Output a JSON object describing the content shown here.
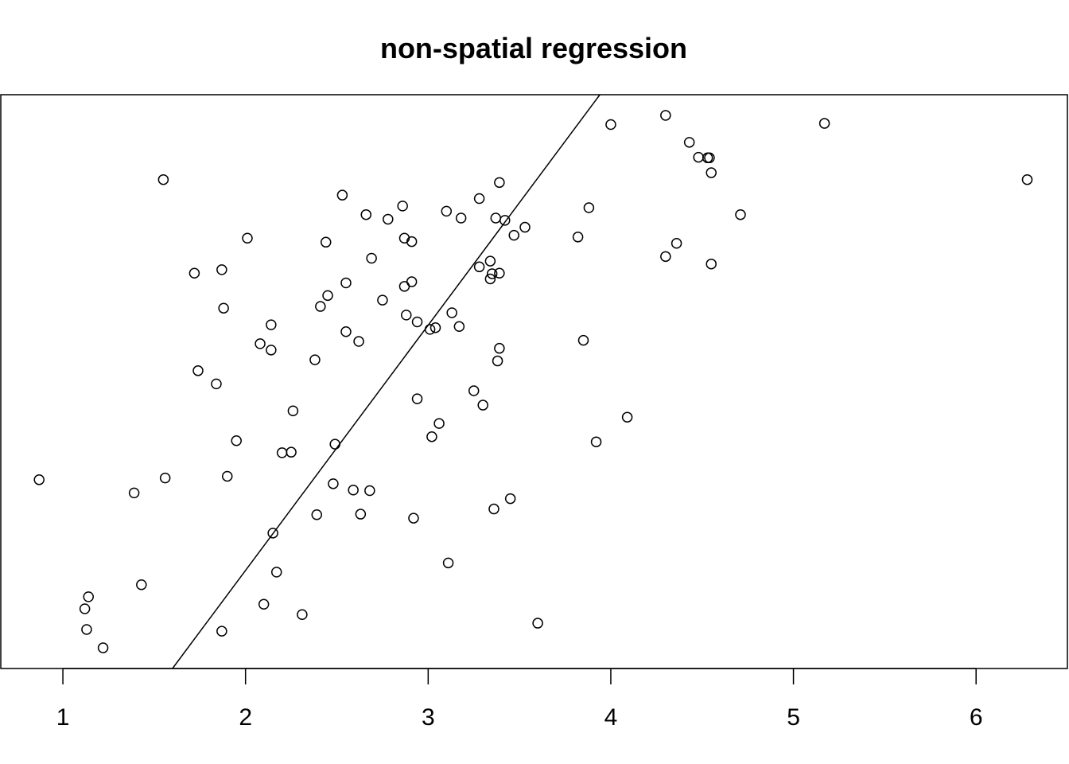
{
  "chart_data": {
    "type": "scatter",
    "title": "non-spatial regression",
    "xlabel": "",
    "ylabel": "",
    "xlim": [
      0.66,
      6.5
    ],
    "ylim": [
      0,
      100
    ],
    "x_ticks": [
      1,
      2,
      3,
      4,
      5,
      6
    ],
    "x_tick_labels": [
      "1",
      "2",
      "3",
      "4",
      "5",
      "6"
    ],
    "y_axis_shown": false,
    "grid": false,
    "legend": "none",
    "point_style": "open-circle",
    "colors": {
      "points": "#000000",
      "line": "#000000",
      "frame": "#000000",
      "background": "#ffffff"
    },
    "regression_line": {
      "x": [
        1.6,
        3.94
      ],
      "y": [
        0,
        100
      ]
    },
    "points": [
      {
        "x": 0.87,
        "y": 32.9
      },
      {
        "x": 1.12,
        "y": 10.4
      },
      {
        "x": 1.13,
        "y": 6.8
      },
      {
        "x": 1.14,
        "y": 12.5
      },
      {
        "x": 1.22,
        "y": 3.6
      },
      {
        "x": 1.39,
        "y": 30.6
      },
      {
        "x": 1.43,
        "y": 14.6
      },
      {
        "x": 1.55,
        "y": 85.2
      },
      {
        "x": 1.56,
        "y": 33.2
      },
      {
        "x": 1.72,
        "y": 68.9
      },
      {
        "x": 1.74,
        "y": 51.9
      },
      {
        "x": 1.84,
        "y": 49.6
      },
      {
        "x": 1.87,
        "y": 69.5
      },
      {
        "x": 1.88,
        "y": 62.8
      },
      {
        "x": 1.87,
        "y": 6.5
      },
      {
        "x": 1.9,
        "y": 33.5
      },
      {
        "x": 1.95,
        "y": 39.7
      },
      {
        "x": 2.01,
        "y": 75.0
      },
      {
        "x": 2.08,
        "y": 56.6
      },
      {
        "x": 2.1,
        "y": 11.2
      },
      {
        "x": 2.14,
        "y": 59.9
      },
      {
        "x": 2.14,
        "y": 55.5
      },
      {
        "x": 2.15,
        "y": 23.6
      },
      {
        "x": 2.17,
        "y": 16.8
      },
      {
        "x": 2.2,
        "y": 37.6
      },
      {
        "x": 2.25,
        "y": 37.7
      },
      {
        "x": 2.26,
        "y": 44.9
      },
      {
        "x": 2.31,
        "y": 9.4
      },
      {
        "x": 2.38,
        "y": 53.8
      },
      {
        "x": 2.39,
        "y": 26.8
      },
      {
        "x": 2.41,
        "y": 63.1
      },
      {
        "x": 2.44,
        "y": 74.3
      },
      {
        "x": 2.45,
        "y": 65.0
      },
      {
        "x": 2.48,
        "y": 32.2
      },
      {
        "x": 2.49,
        "y": 39.1
      },
      {
        "x": 2.53,
        "y": 82.5
      },
      {
        "x": 2.55,
        "y": 67.2
      },
      {
        "x": 2.55,
        "y": 58.7
      },
      {
        "x": 2.59,
        "y": 31.1
      },
      {
        "x": 2.62,
        "y": 57.0
      },
      {
        "x": 2.63,
        "y": 26.9
      },
      {
        "x": 2.66,
        "y": 79.1
      },
      {
        "x": 2.68,
        "y": 31.0
      },
      {
        "x": 2.69,
        "y": 71.5
      },
      {
        "x": 2.75,
        "y": 64.2
      },
      {
        "x": 2.78,
        "y": 78.3
      },
      {
        "x": 2.86,
        "y": 80.6
      },
      {
        "x": 2.87,
        "y": 66.6
      },
      {
        "x": 2.87,
        "y": 75.0
      },
      {
        "x": 2.88,
        "y": 61.6
      },
      {
        "x": 2.91,
        "y": 74.4
      },
      {
        "x": 2.91,
        "y": 67.4
      },
      {
        "x": 2.92,
        "y": 26.2
      },
      {
        "x": 2.94,
        "y": 60.4
      },
      {
        "x": 2.94,
        "y": 47.0
      },
      {
        "x": 3.01,
        "y": 59.1
      },
      {
        "x": 3.02,
        "y": 40.4
      },
      {
        "x": 3.04,
        "y": 59.4
      },
      {
        "x": 3.06,
        "y": 42.7
      },
      {
        "x": 3.1,
        "y": 79.7
      },
      {
        "x": 3.11,
        "y": 18.4
      },
      {
        "x": 3.13,
        "y": 62.0
      },
      {
        "x": 3.18,
        "y": 78.5
      },
      {
        "x": 3.17,
        "y": 59.6
      },
      {
        "x": 3.25,
        "y": 48.4
      },
      {
        "x": 3.28,
        "y": 81.9
      },
      {
        "x": 3.28,
        "y": 70.0
      },
      {
        "x": 3.3,
        "y": 45.9
      },
      {
        "x": 3.34,
        "y": 71.0
      },
      {
        "x": 3.34,
        "y": 67.9
      },
      {
        "x": 3.35,
        "y": 68.8
      },
      {
        "x": 3.36,
        "y": 27.8
      },
      {
        "x": 3.37,
        "y": 78.5
      },
      {
        "x": 3.39,
        "y": 84.7
      },
      {
        "x": 3.39,
        "y": 68.9
      },
      {
        "x": 3.38,
        "y": 53.6
      },
      {
        "x": 3.39,
        "y": 55.8
      },
      {
        "x": 3.42,
        "y": 78.1
      },
      {
        "x": 3.45,
        "y": 29.6
      },
      {
        "x": 3.47,
        "y": 75.5
      },
      {
        "x": 3.53,
        "y": 76.9
      },
      {
        "x": 3.6,
        "y": 7.9
      },
      {
        "x": 3.82,
        "y": 75.2
      },
      {
        "x": 3.85,
        "y": 57.2
      },
      {
        "x": 3.88,
        "y": 80.3
      },
      {
        "x": 3.92,
        "y": 39.5
      },
      {
        "x": 4.0,
        "y": 94.8
      },
      {
        "x": 4.09,
        "y": 43.8
      },
      {
        "x": 4.3,
        "y": 71.8
      },
      {
        "x": 4.3,
        "y": 96.4
      },
      {
        "x": 4.36,
        "y": 74.1
      },
      {
        "x": 4.43,
        "y": 91.7
      },
      {
        "x": 4.48,
        "y": 89.1
      },
      {
        "x": 4.53,
        "y": 89.0
      },
      {
        "x": 4.54,
        "y": 89.0
      },
      {
        "x": 4.55,
        "y": 86.4
      },
      {
        "x": 4.55,
        "y": 70.5
      },
      {
        "x": 4.71,
        "y": 79.1
      },
      {
        "x": 5.17,
        "y": 95.0
      },
      {
        "x": 6.28,
        "y": 85.2
      }
    ]
  }
}
